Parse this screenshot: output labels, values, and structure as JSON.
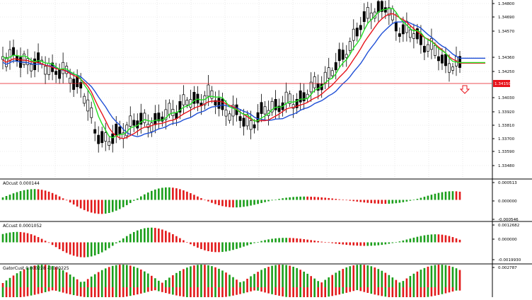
{
  "colors": {
    "background": "#ffffff",
    "grid": "#d9d9d9",
    "candle": "#000000",
    "ma_blue": "#1f4fd6",
    "ma_red": "#e8141c",
    "ma_green": "#22e022",
    "osc_up": "#1a9e1a",
    "osc_down": "#e21919",
    "price_line": "#e8141c",
    "price_label_bg": "#e8141c",
    "price_label_text": "#ffffff",
    "arrow": "#e8141c",
    "axis_text": "#000000"
  },
  "price_chart": {
    "ticks": [
      "1.34800",
      "1.34690",
      "1.34570",
      "1.34360",
      "1.34250",
      "1.34030",
      "1.33920",
      "1.33810",
      "1.33700",
      "1.33590",
      "1.33480"
    ],
    "current_price": "1.34150",
    "alert_arrow": "down-arrow-icon"
  },
  "indicators": [
    {
      "title": "AOcust 0.000144",
      "ticks": [
        "0.000513",
        "0.000000",
        "-0.000546"
      ]
    },
    {
      "title": "ACcust 0.0001052",
      "ticks": [
        "0.0012682",
        "0.000000",
        "-0.0019930"
      ]
    },
    {
      "title": "GatorCust 0.000228 -0.000225",
      "ticks": [
        "0.002787"
      ]
    }
  ]
}
